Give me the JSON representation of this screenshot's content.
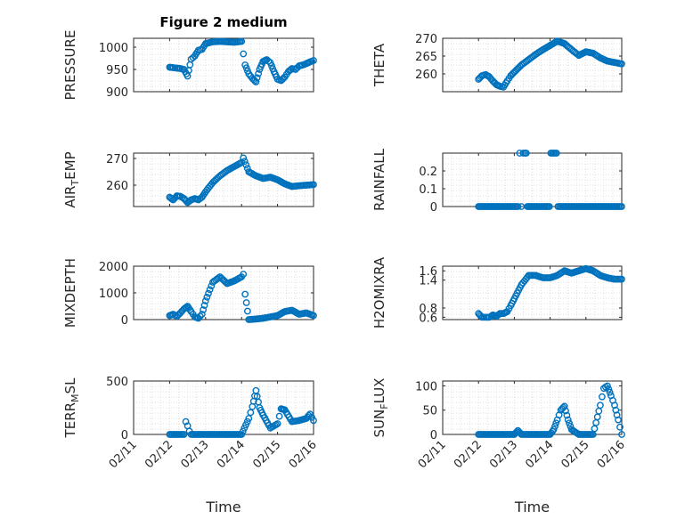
{
  "figure": {
    "title": "Figure 2 medium",
    "xlabel": "Time",
    "marker_color": "#0072BD",
    "xticks": [
      "02/11",
      "02/12",
      "02/13",
      "02/14",
      "02/15",
      "02/16"
    ]
  },
  "chart_data": [
    {
      "type": "scatter",
      "ylabel": "PRESSURE",
      "ylim": [
        900,
        1020
      ],
      "yticks": [
        900,
        950,
        1000
      ],
      "x": [
        1.0,
        1.1,
        1.2,
        1.3,
        1.4,
        1.5,
        1.6,
        1.7,
        1.8,
        1.9,
        2.0,
        2.2,
        2.4,
        2.6,
        2.8,
        3.0,
        3.05,
        3.1,
        3.2,
        3.3,
        3.4,
        3.5,
        3.6,
        3.7,
        3.8,
        3.9,
        4.0,
        4.1,
        4.2,
        4.3,
        4.4,
        4.5,
        4.6,
        4.7,
        4.8,
        4.9,
        5.0
      ],
      "y": [
        955,
        954,
        953,
        952,
        950,
        935,
        973,
        980,
        993,
        995,
        1008,
        1012,
        1013,
        1012,
        1011,
        1013,
        985,
        960,
        940,
        930,
        922,
        950,
        968,
        972,
        965,
        945,
        928,
        925,
        933,
        945,
        952,
        950,
        958,
        960,
        963,
        967,
        970
      ]
    },
    {
      "type": "scatter",
      "ylabel": "THETA",
      "ylim": [
        255,
        270
      ],
      "yticks": [
        260,
        265,
        270
      ],
      "x": [
        1.0,
        1.1,
        1.2,
        1.3,
        1.4,
        1.5,
        1.6,
        1.7,
        1.8,
        1.9,
        2.0,
        2.2,
        2.4,
        2.6,
        2.8,
        3.0,
        3.2,
        3.4,
        3.6,
        3.8,
        4.0,
        4.2,
        4.4,
        4.6,
        4.8,
        5.0
      ],
      "y": [
        258.5,
        259.5,
        259.8,
        259.2,
        258.0,
        257.0,
        256.5,
        256.3,
        258.0,
        259.5,
        260.5,
        262.5,
        264.0,
        265.5,
        266.8,
        268.0,
        269.2,
        268.5,
        266.8,
        265.2,
        266.2,
        265.8,
        264.5,
        263.6,
        263.2,
        262.8
      ]
    },
    {
      "type": "scatter",
      "ylabel": "AIR_TEMP",
      "ylim": [
        252,
        272
      ],
      "yticks": [
        260,
        270
      ],
      "x": [
        1.0,
        1.1,
        1.2,
        1.3,
        1.4,
        1.5,
        1.6,
        1.7,
        1.8,
        1.9,
        2.0,
        2.2,
        2.4,
        2.6,
        2.8,
        3.0,
        3.05,
        3.2,
        3.4,
        3.6,
        3.8,
        4.0,
        4.2,
        4.4,
        4.6,
        4.8,
        5.0
      ],
      "y": [
        255.5,
        254.5,
        256.0,
        255.8,
        255.0,
        253.5,
        254.5,
        255.0,
        254.5,
        255.5,
        257.5,
        261.0,
        263.5,
        265.5,
        267.0,
        268.5,
        270.2,
        265.0,
        263.5,
        262.5,
        263.0,
        262.0,
        260.5,
        259.5,
        259.8,
        260.0,
        260.2
      ]
    },
    {
      "type": "scatter",
      "ylabel": "RAINFALL",
      "ylim": [
        0,
        0.3
      ],
      "yticks": [
        0,
        0.1,
        0.2
      ],
      "x": [
        1.0,
        1.3,
        1.6,
        1.9,
        2.1,
        2.15,
        2.2,
        2.3,
        2.4,
        2.5,
        2.7,
        2.9,
        3.1,
        3.3,
        3.5,
        3.7,
        3.9,
        4.1,
        4.3,
        4.5,
        4.7,
        5.0
      ],
      "y": [
        0,
        0,
        0,
        0,
        0,
        0.3,
        0,
        0.3,
        0,
        0,
        0,
        0,
        0.3,
        0,
        0,
        0,
        0,
        0,
        0,
        0,
        0,
        0
      ]
    },
    {
      "type": "scatter",
      "ylabel": "MIXDEPTH",
      "ylim": [
        0,
        2000
      ],
      "yticks": [
        0,
        1000,
        2000
      ],
      "x": [
        1.0,
        1.1,
        1.2,
        1.3,
        1.4,
        1.5,
        1.6,
        1.7,
        1.8,
        1.9,
        2.0,
        2.2,
        2.4,
        2.6,
        2.8,
        3.0,
        3.05,
        3.1,
        3.2,
        3.4,
        3.6,
        3.8,
        4.0,
        4.2,
        4.4,
        4.6,
        4.8,
        5.0
      ],
      "y": [
        150,
        200,
        120,
        250,
        400,
        500,
        300,
        100,
        50,
        200,
        700,
        1400,
        1600,
        1350,
        1450,
        1600,
        1700,
        950,
        0,
        20,
        50,
        100,
        150,
        300,
        350,
        200,
        250,
        150
      ]
    },
    {
      "type": "scatter",
      "ylabel": "H2OMIXRA",
      "ylim": [
        0.55,
        1.7
      ],
      "yticks": [
        0.6,
        0.8,
        1.4,
        1.6
      ],
      "x": [
        1.0,
        1.1,
        1.2,
        1.3,
        1.4,
        1.5,
        1.6,
        1.7,
        1.8,
        1.9,
        2.0,
        2.2,
        2.4,
        2.6,
        2.8,
        3.0,
        3.2,
        3.4,
        3.6,
        3.8,
        4.0,
        4.2,
        4.4,
        4.6,
        4.8,
        5.0
      ],
      "y": [
        0.68,
        0.6,
        0.6,
        0.6,
        0.65,
        0.62,
        0.68,
        0.68,
        0.72,
        0.85,
        1.0,
        1.3,
        1.5,
        1.5,
        1.45,
        1.45,
        1.5,
        1.6,
        1.55,
        1.6,
        1.65,
        1.6,
        1.5,
        1.45,
        1.42,
        1.42
      ]
    },
    {
      "type": "scatter",
      "ylabel": "TERR_MSL",
      "ylim": [
        0,
        500
      ],
      "yticks": [
        0,
        500
      ],
      "x": [
        1.0,
        1.2,
        1.4,
        1.45,
        1.5,
        1.55,
        1.6,
        1.8,
        2.0,
        2.4,
        2.8,
        3.0,
        3.2,
        3.3,
        3.4,
        3.5,
        3.6,
        3.8,
        4.0,
        4.1,
        4.2,
        4.4,
        4.6,
        4.8,
        4.9,
        5.0
      ],
      "y": [
        0,
        0,
        0,
        120,
        80,
        30,
        0,
        0,
        0,
        0,
        0,
        0,
        150,
        260,
        410,
        250,
        180,
        60,
        100,
        240,
        230,
        120,
        130,
        150,
        190,
        130
      ]
    },
    {
      "type": "scatter",
      "ylabel": "SUN_FLUX",
      "ylim": [
        0,
        110
      ],
      "yticks": [
        0,
        50,
        100
      ],
      "x": [
        1.0,
        1.4,
        1.8,
        2.0,
        2.1,
        2.2,
        2.6,
        3.0,
        3.1,
        3.2,
        3.3,
        3.4,
        3.5,
        3.6,
        3.7,
        3.8,
        4.0,
        4.2,
        4.4,
        4.5,
        4.6,
        4.7,
        4.8,
        4.9,
        5.0
      ],
      "y": [
        0,
        0,
        0,
        0,
        8,
        0,
        0,
        0,
        10,
        30,
        50,
        58,
        30,
        10,
        5,
        0,
        0,
        0,
        60,
        95,
        100,
        80,
        60,
        30,
        0
      ]
    }
  ]
}
